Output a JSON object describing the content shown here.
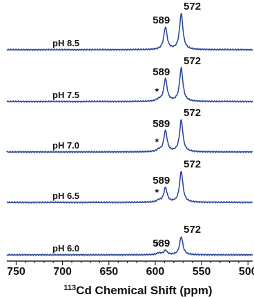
{
  "chart_data": {
    "type": "line",
    "title": "",
    "xlabel_sup": "113",
    "xlabel_main": "Cd Chemical Shift (ppm)",
    "ylabel": "",
    "xlim": [
      760,
      495
    ],
    "x_reversed": true,
    "x_ticks": [
      750,
      700,
      650,
      600,
      550,
      500
    ],
    "grid": false,
    "line_color": "#2e4a9e",
    "series": [
      {
        "name": "pH 8.5",
        "peaks": [
          {
            "ppm": 589,
            "height": 0.62,
            "label": "589"
          },
          {
            "ppm": 572,
            "height": 1.0,
            "label": "572"
          }
        ],
        "shoulder": false
      },
      {
        "name": "pH 7.5",
        "peaks": [
          {
            "ppm": 589,
            "height": 0.62,
            "label": "589"
          },
          {
            "ppm": 572,
            "height": 0.92,
            "label": "572"
          }
        ],
        "shoulder": true
      },
      {
        "name": "pH 7.0",
        "peaks": [
          {
            "ppm": 589,
            "height": 0.58,
            "label": "589"
          },
          {
            "ppm": 572,
            "height": 0.88,
            "label": "572"
          }
        ],
        "shoulder": true
      },
      {
        "name": "pH 6.5",
        "peaks": [
          {
            "ppm": 589,
            "height": 0.4,
            "label": "589"
          },
          {
            "ppm": 572,
            "height": 0.86,
            "label": "572"
          }
        ],
        "shoulder": true
      },
      {
        "name": "pH 6.0",
        "peaks": [
          {
            "ppm": 589,
            "height": 0.12,
            "label": "589"
          },
          {
            "ppm": 572,
            "height": 0.5,
            "label": "572"
          }
        ],
        "shoulder": true
      }
    ],
    "shoulder_marker": "*"
  }
}
